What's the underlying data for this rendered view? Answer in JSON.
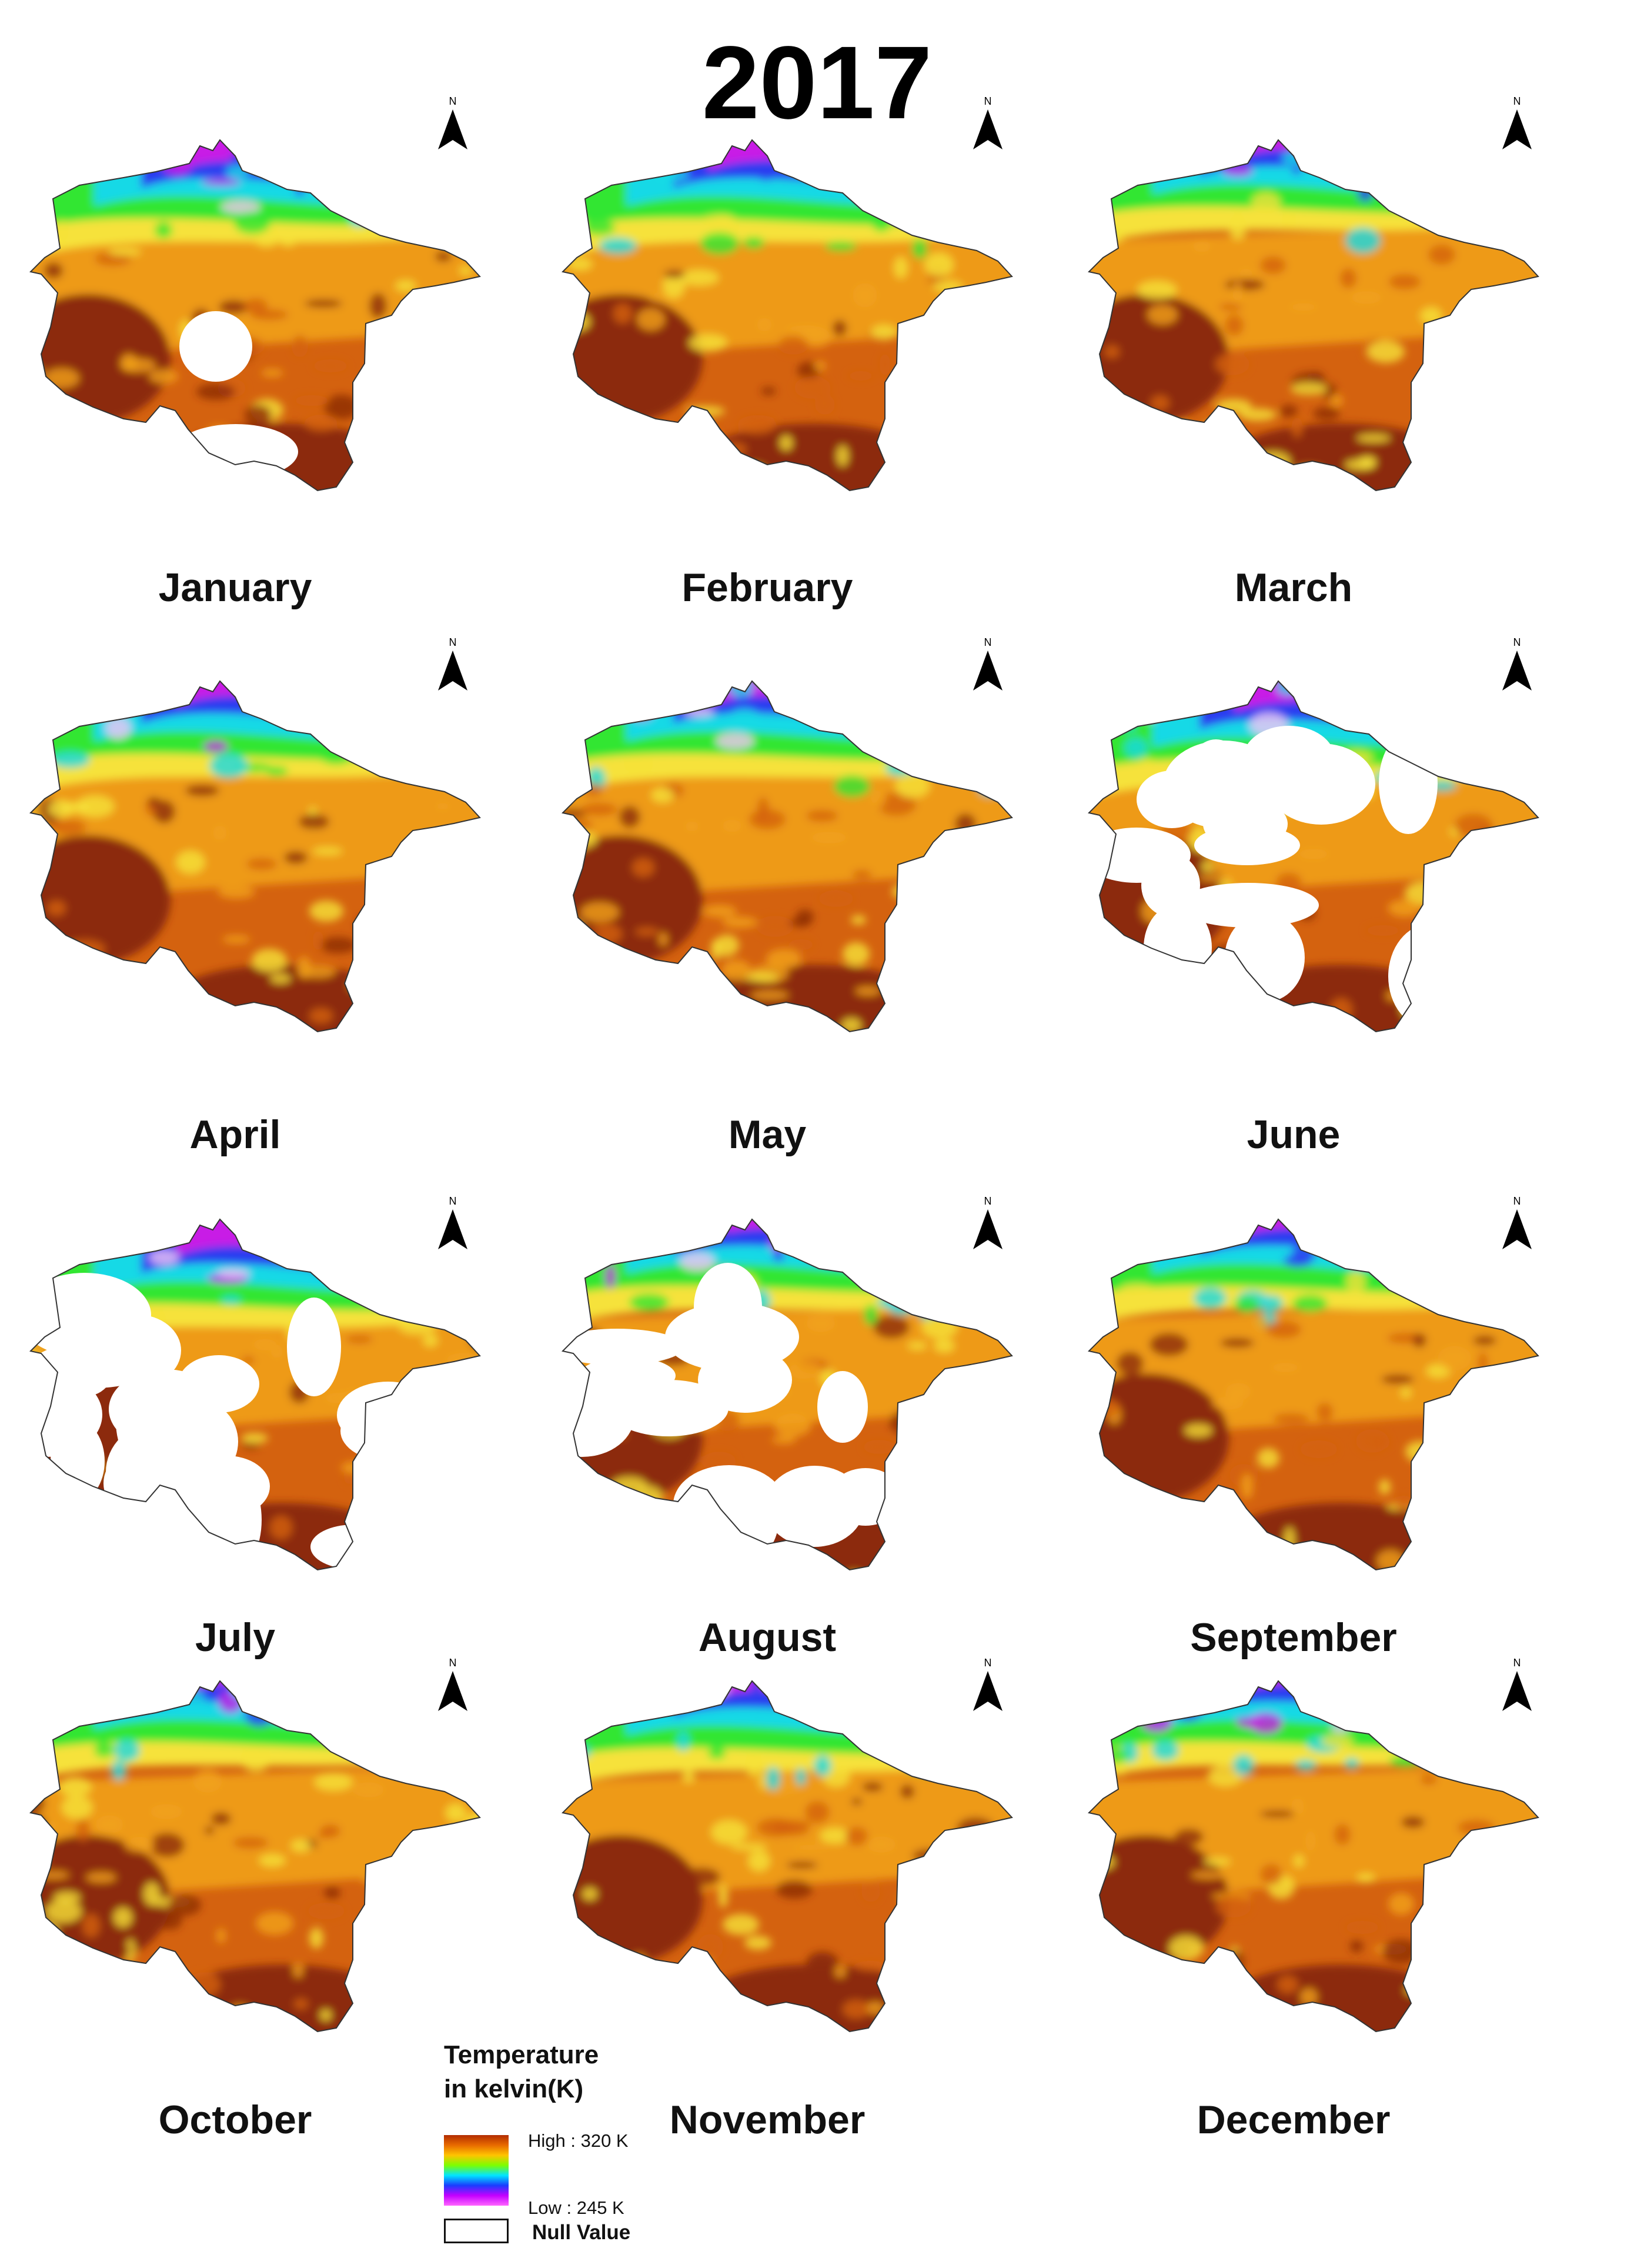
{
  "title": "2017",
  "north_arrow_label": "N",
  "panels": [
    {
      "month": "January",
      "cold_extent": 0.55,
      "null_fraction": 0.04
    },
    {
      "month": "February",
      "cold_extent": 0.55,
      "null_fraction": 0.0
    },
    {
      "month": "March",
      "cold_extent": 0.45,
      "null_fraction": 0.0
    },
    {
      "month": "April",
      "cold_extent": 0.5,
      "null_fraction": 0.0
    },
    {
      "month": "May",
      "cold_extent": 0.5,
      "null_fraction": 0.0
    },
    {
      "month": "June",
      "cold_extent": 0.55,
      "null_fraction": 0.35
    },
    {
      "month": "July",
      "cold_extent": 0.6,
      "null_fraction": 0.55
    },
    {
      "month": "August",
      "cold_extent": 0.45,
      "null_fraction": 0.3
    },
    {
      "month": "September",
      "cold_extent": 0.45,
      "null_fraction": 0.0
    },
    {
      "month": "October",
      "cold_extent": 0.4,
      "null_fraction": 0.0
    },
    {
      "month": "November",
      "cold_extent": 0.45,
      "null_fraction": 0.0
    },
    {
      "month": "December",
      "cold_extent": 0.4,
      "null_fraction": 0.0
    }
  ],
  "legend": {
    "title_line1": "Temperature",
    "title_line2": "in kelvin(K)",
    "high_label": "High : 320 K",
    "low_label": "Low : 245 K",
    "null_label": "Null Value",
    "ramp_colors": [
      "#b22c00",
      "#e86a00",
      "#ffc400",
      "#7cff00",
      "#00e5ff",
      "#1a3cff",
      "#c400ff",
      "#ff66ff"
    ]
  },
  "colors": {
    "hot": "#8c2a08",
    "warm": "#d4620f",
    "mild": "#f2a31a",
    "yellow": "#f6e23a",
    "green": "#32e632",
    "cyan": "#19d9e6",
    "blue": "#2a3cf0",
    "magenta": "#c81ee6",
    "snow": "#f3c6f5",
    "null": "#ffffff"
  }
}
